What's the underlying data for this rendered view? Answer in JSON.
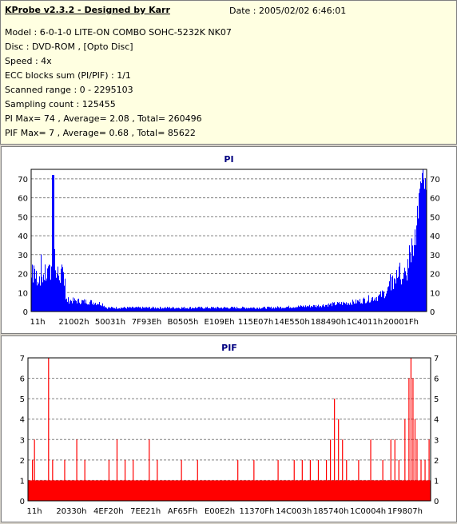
{
  "info": {
    "title": "KProbe v2.3.2 - Designed by Karr",
    "date": "Date : 2005/02/02 6:46:01",
    "lines": [
      "Model : 6-0-1-0 LITE-ON COMBO SOHC-5232K NK07",
      "Disc : DVD-ROM ,  [Opto Disc]",
      "Speed : 4x",
      "ECC blocks sum (PI/PIF) : 1/1",
      "Scanned range : 0 - 2295103",
      "Sampling count : 125455",
      "PI Max= 74 , Average= 2.08 , Total= 260496",
      "PIF Max= 7 , Average= 0.68 , Total= 85622"
    ]
  },
  "chart_data": [
    {
      "type": "bar",
      "title": "PI",
      "color": "#0000ff",
      "ylim": [
        0,
        75
      ],
      "yticks": [
        0,
        10,
        20,
        30,
        40,
        50,
        60,
        70
      ],
      "xlabels": [
        "11h",
        "21002h",
        "50031h",
        "7F93Eh",
        "B0505h",
        "E109Eh",
        "115E07h",
        "14E550h",
        "188490h",
        "1C4011h",
        "20001Fh"
      ],
      "grid": true,
      "profile": [
        [
          0,
          18
        ],
        [
          0.03,
          19
        ],
        [
          0.05,
          20
        ],
        [
          0.055,
          72
        ],
        [
          0.06,
          20
        ],
        [
          0.085,
          19
        ],
        [
          0.087,
          6
        ],
        [
          0.15,
          5
        ],
        [
          0.18,
          4
        ],
        [
          0.19,
          2
        ],
        [
          0.4,
          2
        ],
        [
          0.6,
          2
        ],
        [
          0.72,
          3
        ],
        [
          0.82,
          5
        ],
        [
          0.88,
          8
        ],
        [
          0.92,
          14
        ],
        [
          0.95,
          22
        ],
        [
          0.97,
          35
        ],
        [
          0.985,
          55
        ],
        [
          0.995,
          74
        ],
        [
          1.0,
          60
        ]
      ]
    },
    {
      "type": "bar",
      "title": "PIF",
      "color": "#ff0000",
      "ylim": [
        0,
        7
      ],
      "yticks": [
        0,
        1,
        2,
        3,
        4,
        5,
        6,
        7
      ],
      "xlabels": [
        "11h",
        "20330h",
        "4EF20h",
        "7EE21h",
        "AF65Fh",
        "E00E2h",
        "11370Fh",
        "14C003h",
        "185740h",
        "1C0004h",
        "1F9807h"
      ],
      "grid": true,
      "spikes": [
        [
          0.01,
          2
        ],
        [
          0.015,
          3
        ],
        [
          0.05,
          7
        ],
        [
          0.06,
          2
        ],
        [
          0.09,
          2
        ],
        [
          0.12,
          3
        ],
        [
          0.14,
          2
        ],
        [
          0.2,
          2
        ],
        [
          0.22,
          3
        ],
        [
          0.24,
          2
        ],
        [
          0.26,
          2
        ],
        [
          0.3,
          3
        ],
        [
          0.32,
          2
        ],
        [
          0.38,
          2
        ],
        [
          0.42,
          2
        ],
        [
          0.52,
          2
        ],
        [
          0.56,
          2
        ],
        [
          0.62,
          2
        ],
        [
          0.66,
          2
        ],
        [
          0.68,
          2
        ],
        [
          0.7,
          2
        ],
        [
          0.72,
          2
        ],
        [
          0.74,
          2
        ],
        [
          0.75,
          3
        ],
        [
          0.76,
          5
        ],
        [
          0.77,
          4
        ],
        [
          0.78,
          3
        ],
        [
          0.79,
          2
        ],
        [
          0.82,
          2
        ],
        [
          0.85,
          3
        ],
        [
          0.88,
          2
        ],
        [
          0.9,
          3
        ],
        [
          0.91,
          3
        ],
        [
          0.92,
          2
        ],
        [
          0.935,
          4
        ],
        [
          0.945,
          6
        ],
        [
          0.95,
          7
        ],
        [
          0.955,
          6
        ],
        [
          0.96,
          4
        ],
        [
          0.965,
          3
        ],
        [
          0.975,
          2
        ],
        [
          0.985,
          2
        ],
        [
          0.995,
          3
        ]
      ]
    }
  ]
}
